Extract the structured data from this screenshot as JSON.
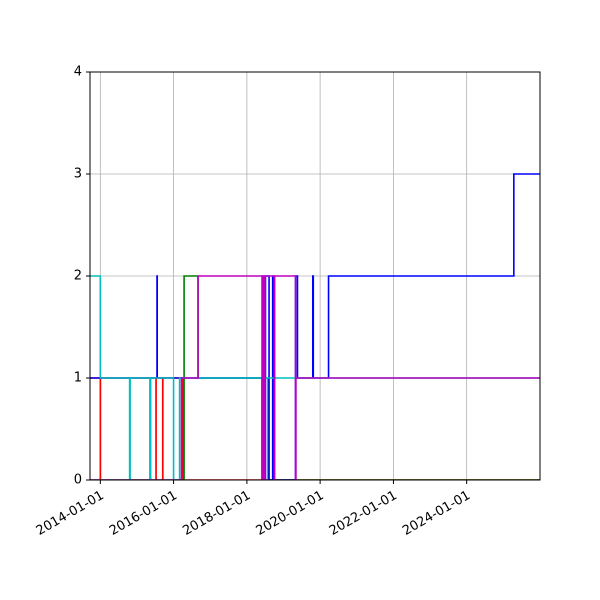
{
  "chart_data": {
    "type": "line",
    "title": "",
    "xlabel": "",
    "ylabel": "",
    "x_axis": "date",
    "xlim": [
      "2013-09-20",
      "2026-01-01"
    ],
    "ylim": [
      0,
      4
    ],
    "grid": true,
    "legend": "none",
    "x_ticks": [
      "2014-01-01",
      "2016-01-01",
      "2018-01-01",
      "2020-01-01",
      "2022-01-01",
      "2024-01-01"
    ],
    "x_tick_labels": [
      "2014-01-01",
      "2016-01-01",
      "2018-01-01",
      "2020-01-01",
      "2022-01-01",
      "2024-01-01"
    ],
    "y_ticks": [
      0,
      1,
      2,
      3,
      4
    ],
    "y_tick_labels": [
      "0",
      "1",
      "2",
      "3",
      "4"
    ],
    "series": [
      {
        "color": "#ff0000",
        "step": "post",
        "points": [
          [
            "2013-09-20",
            1
          ],
          [
            "2014-01-01",
            0
          ],
          [
            "2014-01-02",
            1
          ],
          [
            "2015-05-15",
            0
          ],
          [
            "2015-05-16",
            1
          ],
          [
            "2015-07-10",
            0
          ],
          [
            "2015-07-11",
            1
          ],
          [
            "2015-09-15",
            0
          ],
          [
            "2015-09-16",
            1
          ],
          [
            "2016-04-01",
            0
          ],
          [
            "2026-01-01",
            0
          ]
        ]
      },
      {
        "color": "#008000",
        "step": "post",
        "points": [
          [
            "2013-09-20",
            0
          ],
          [
            "2016-04-15",
            2
          ],
          [
            "2016-09-01",
            1
          ],
          [
            "2018-08-01",
            0
          ],
          [
            "2026-01-01",
            0
          ]
        ]
      },
      {
        "color": "#0000ff",
        "step": "post",
        "points": [
          [
            "2013-09-20",
            1
          ],
          [
            "2015-07-20",
            2
          ],
          [
            "2015-07-22",
            1
          ],
          [
            "2018-06-01",
            0
          ],
          [
            "2018-06-05",
            2
          ],
          [
            "2018-06-15",
            0
          ],
          [
            "2018-06-20",
            2
          ],
          [
            "2018-07-01",
            0
          ],
          [
            "2018-07-05",
            2
          ],
          [
            "2018-08-10",
            0
          ],
          [
            "2018-09-15",
            2
          ],
          [
            "2018-10-01",
            0
          ],
          [
            "2019-05-01",
            2
          ],
          [
            "2019-05-20",
            1
          ],
          [
            "2019-10-20",
            2
          ],
          [
            "2019-10-25",
            1
          ],
          [
            "2020-03-25",
            2
          ],
          [
            "2025-04-15",
            3
          ],
          [
            "2026-01-01",
            3
          ]
        ]
      },
      {
        "color": "#00bfbf",
        "step": "post",
        "points": [
          [
            "2013-09-20",
            2
          ],
          [
            "2014-01-01",
            1
          ],
          [
            "2014-10-20",
            0
          ],
          [
            "2014-10-25",
            1
          ],
          [
            "2015-05-10",
            0
          ],
          [
            "2015-05-15",
            1
          ],
          [
            "2016-01-01",
            0
          ],
          [
            "2016-03-01",
            1
          ],
          [
            "2026-01-01",
            1
          ]
        ]
      },
      {
        "color": "#bf00bf",
        "step": "post",
        "points": [
          [
            "2013-09-20",
            0
          ],
          [
            "2016-03-20",
            1
          ],
          [
            "2016-09-01",
            2
          ],
          [
            "2018-06-01",
            0
          ],
          [
            "2018-06-10",
            2
          ],
          [
            "2018-06-25",
            0
          ],
          [
            "2018-07-01",
            2
          ],
          [
            "2018-10-01",
            0
          ],
          [
            "2018-10-05",
            2
          ],
          [
            "2019-05-01",
            0
          ],
          [
            "2019-05-05",
            1
          ],
          [
            "2026-01-01",
            1
          ]
        ]
      }
    ]
  }
}
